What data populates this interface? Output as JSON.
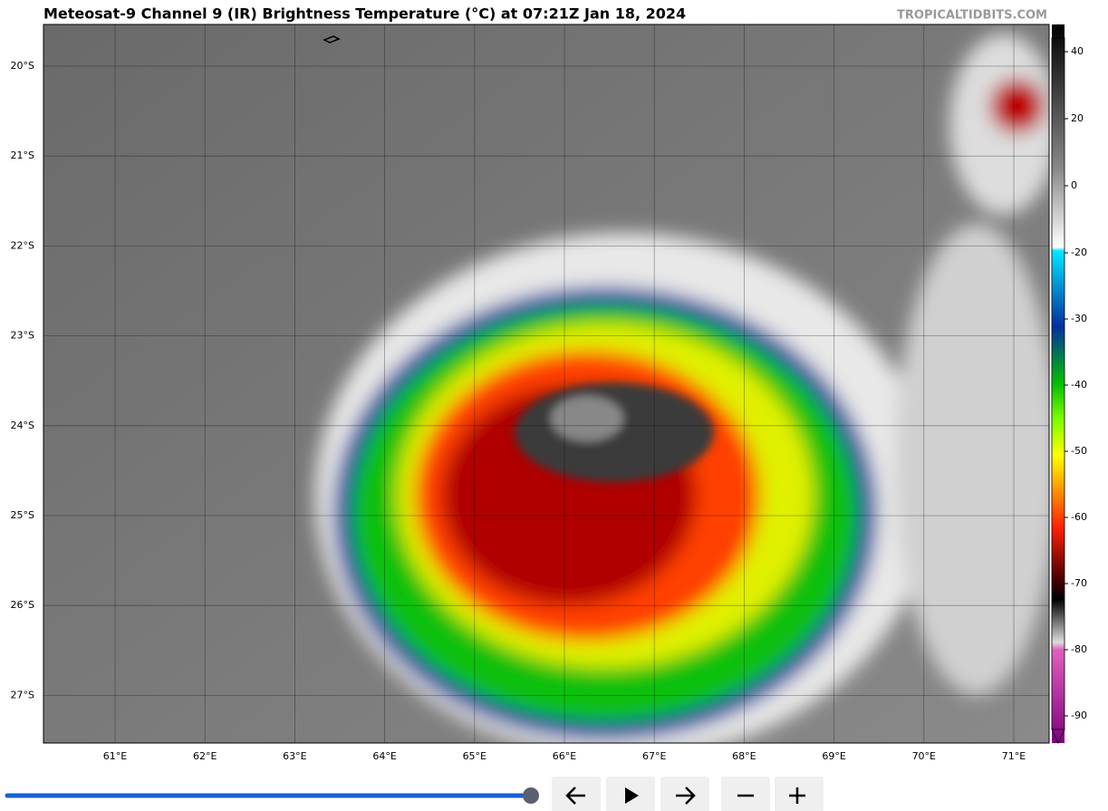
{
  "header": {
    "title": "Meteosat-9 Channel 9 (IR) Brightness Temperature (°C) at 07:21Z Jan 18, 2024",
    "watermark": "TROPICALTIDBITS.COM"
  },
  "map": {
    "lat_labels": [
      "20°S",
      "21°S",
      "22°S",
      "23°S",
      "24°S",
      "25°S",
      "26°S",
      "27°S"
    ],
    "lon_labels": [
      "61°E",
      "62°E",
      "63°E",
      "64°E",
      "65°E",
      "66°E",
      "67°E",
      "68°E",
      "69°E",
      "70°E",
      "71°E"
    ]
  },
  "colorbar": {
    "ticks": [
      40,
      20,
      0,
      -20,
      -30,
      -40,
      -50,
      -60,
      -70,
      -80,
      -90
    ]
  }
}
